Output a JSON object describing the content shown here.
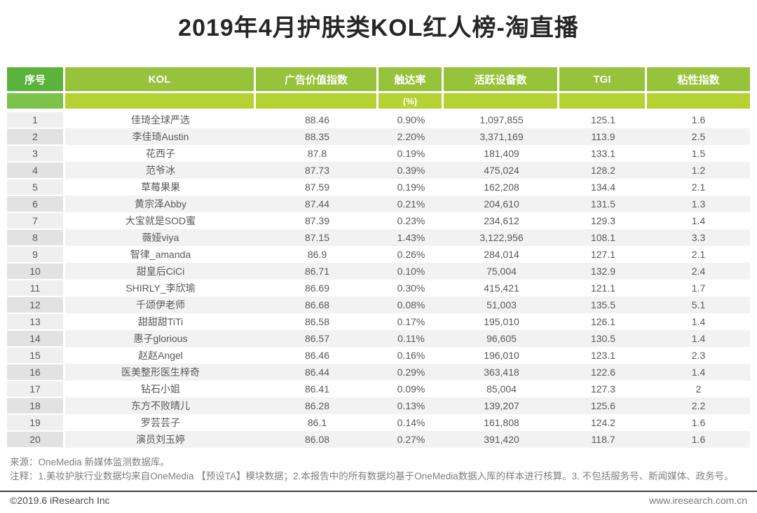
{
  "title": "2019年4月护肤类KOL红人榜-淘直播",
  "colors": {
    "header_rank_green": "#5cb33c",
    "header_green": "#97c23c",
    "subheader_rank_green": "#7dc24b",
    "subheader_green": "#b5d233",
    "row_even_bg": "#f2f2f2",
    "row_odd_bg": "#ffffff",
    "rank_odd_bg": "#efefef",
    "rank_even_bg": "#e2e2e2",
    "text_gray": "#595959"
  },
  "chart_data": {
    "type": "table",
    "title": "2019年4月护肤类KOL红人榜-淘直播",
    "columns": [
      "序号",
      "KOL",
      "广告价值指数",
      "触达率",
      "活跃设备数",
      "TGI",
      "粘性指数"
    ],
    "unit_row": [
      "",
      "",
      "",
      "(%)",
      "",
      "",
      ""
    ],
    "rows": [
      [
        "1",
        "佳琦全球严选",
        "88.46",
        "0.90%",
        "1,097,855",
        "125.1",
        "1.6"
      ],
      [
        "2",
        "李佳琦Austin",
        "88.35",
        "2.20%",
        "3,371,169",
        "113.9",
        "2.5"
      ],
      [
        "3",
        "花西子",
        "87.8",
        "0.19%",
        "181,409",
        "133.1",
        "1.5"
      ],
      [
        "4",
        "范爷冰",
        "87.73",
        "0.39%",
        "475,024",
        "128.2",
        "1.2"
      ],
      [
        "5",
        "草莓果果",
        "87.59",
        "0.19%",
        "162,208",
        "134.4",
        "2.1"
      ],
      [
        "6",
        "黄宗泽Abby",
        "87.44",
        "0.21%",
        "204,610",
        "131.5",
        "1.3"
      ],
      [
        "7",
        "大宝就是SOD蜜",
        "87.39",
        "0.23%",
        "234,612",
        "129.3",
        "1.4"
      ],
      [
        "8",
        "薇娅viya",
        "87.15",
        "1.43%",
        "3,122,956",
        "108.1",
        "3.3"
      ],
      [
        "9",
        "智律_amanda",
        "86.9",
        "0.26%",
        "284,014",
        "127.1",
        "2.1"
      ],
      [
        "10",
        "甜皇后CiCi",
        "86.71",
        "0.10%",
        "75,004",
        "132.9",
        "2.4"
      ],
      [
        "11",
        "SHIRLY_李欣瑜",
        "86.69",
        "0.30%",
        "415,421",
        "121.1",
        "1.7"
      ],
      [
        "12",
        "千颂伊老师",
        "86.68",
        "0.08%",
        "51,003",
        "135.5",
        "5.1"
      ],
      [
        "13",
        "甜甜甜TiTi",
        "86.58",
        "0.17%",
        "195,010",
        "126.1",
        "1.4"
      ],
      [
        "14",
        "惠子glorious",
        "86.57",
        "0.11%",
        "96,605",
        "130.5",
        "1.4"
      ],
      [
        "15",
        "赵赵Angel",
        "86.46",
        "0.16%",
        "196,010",
        "123.1",
        "2.3"
      ],
      [
        "16",
        "医美整形医生梓奇",
        "86.44",
        "0.29%",
        "363,418",
        "122.6",
        "1.4"
      ],
      [
        "17",
        "钻石小姐",
        "86.41",
        "0.09%",
        "85,004",
        "127.3",
        "2"
      ],
      [
        "18",
        "东方不败晴儿",
        "86.28",
        "0.13%",
        "139,207",
        "125.6",
        "2.2"
      ],
      [
        "19",
        "罗芸芸子",
        "86.1",
        "0.14%",
        "161,808",
        "124.2",
        "1.6"
      ],
      [
        "20",
        "演员刘玉婷",
        "86.08",
        "0.27%",
        "391,420",
        "118.7",
        "1.6"
      ]
    ]
  },
  "footer": {
    "source": "来源：OneMedia 新媒体监测数据库。",
    "note": "注释：1.美妆护肤行业数据均来自OneMedia 【预设TA】模块数据；2.本报告中的所有数据均基于OneMedia数据入库的样本进行核算。3. 不包括服务号、新闻媒体、政务号。",
    "copyright": "©2019.6 iResearch Inc",
    "website": "www.iresearch.com.cn"
  }
}
